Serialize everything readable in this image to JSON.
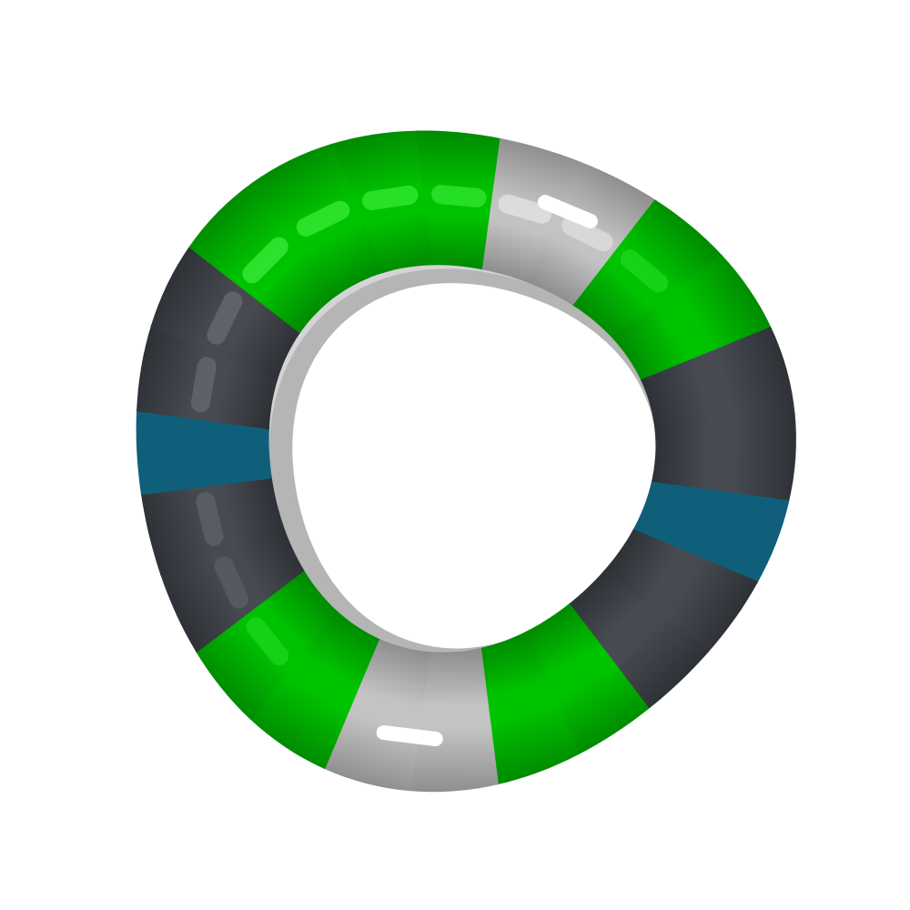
{
  "scene": {
    "subject": "molecular-ring-tube-render",
    "background_color": "#ffffff"
  },
  "colors": {
    "green": "#00c300",
    "green_dark": "#008c00",
    "green_light": "#3ff03f",
    "dark_gray": "#474b51",
    "dark_gray_shadow": "#2e3136",
    "dark_gray_light": "#6a6f77",
    "light_gray": "#c3c3c3",
    "light_gray_shadow": "#8f8f8f",
    "teal": "#0f5f7a",
    "inner_wall": "#d4d4d6",
    "inner_wall_shadow": "#9a9a9c"
  },
  "ring": {
    "segment_count": 24,
    "segments": [
      {
        "color": "green"
      },
      {
        "color": "green"
      },
      {
        "color": "light_gray"
      },
      {
        "color": "light_gray"
      },
      {
        "color": "green"
      },
      {
        "color": "green"
      },
      {
        "color": "dark_gray"
      },
      {
        "color": "dark_gray"
      },
      {
        "color": "teal"
      },
      {
        "color": "dark_gray"
      },
      {
        "color": "dark_gray"
      },
      {
        "color": "green"
      },
      {
        "color": "green"
      },
      {
        "color": "light_gray"
      },
      {
        "color": "light_gray"
      },
      {
        "color": "green"
      },
      {
        "color": "green"
      },
      {
        "color": "dark_gray"
      },
      {
        "color": "dark_gray"
      },
      {
        "color": "teal"
      },
      {
        "color": "dark_gray"
      },
      {
        "color": "dark_gray"
      },
      {
        "color": "green"
      },
      {
        "color": "green"
      }
    ]
  }
}
